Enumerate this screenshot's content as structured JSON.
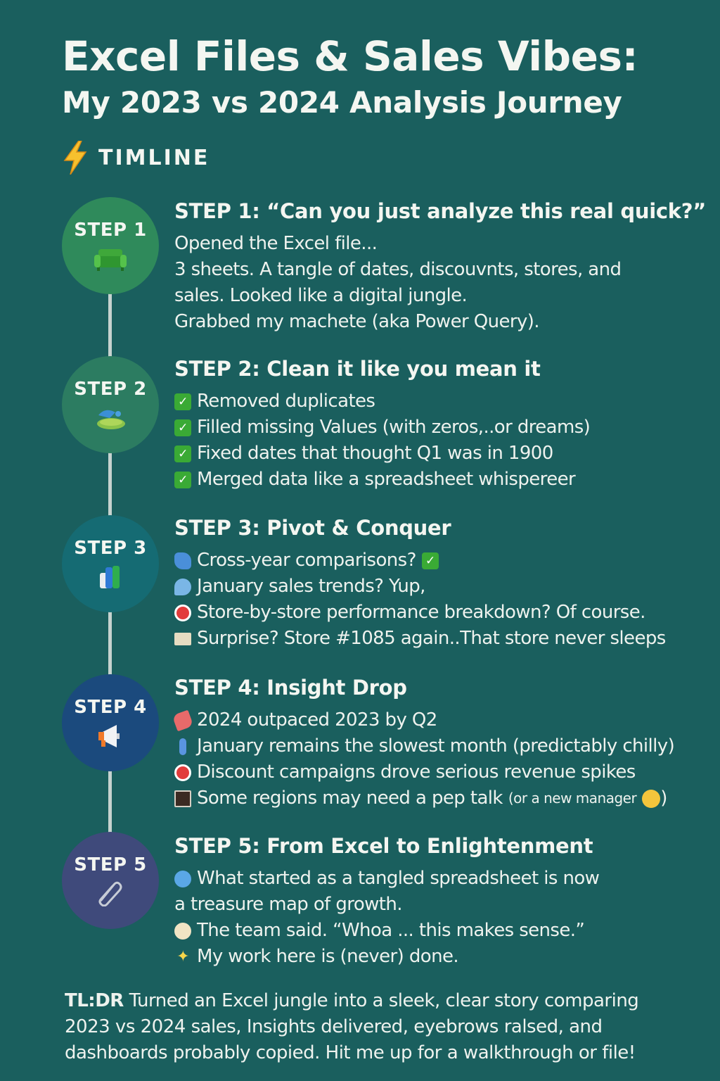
{
  "header": {
    "title": "Excel Files & Sales Vibes:",
    "subtitle": "My 2023 vs 2024 Analysis Journey",
    "timeline_label": "TIMLINE"
  },
  "colors": {
    "background": "#1a5f5e",
    "step1": "#2e8a5a",
    "step2": "#2f7d62",
    "step3": "#176c72",
    "step4": "#1c4a7c",
    "step5": "#3f4a7a"
  },
  "steps": [
    {
      "badge": "STEP 1",
      "icon": "sofa-icon",
      "heading": "STEP 1: “Can you just analyze this real quick?”",
      "lines": [
        "Opened the Excel file...",
        "3 sheets. A tangle of dates, discouvnts, stores, and",
        "sales. Looked like a digital jungle.",
        "Grabbed my machete (aka Power Query)."
      ]
    },
    {
      "badge": "STEP 2",
      "icon": "cleaning-icon",
      "heading": "STEP 2: Clean it like you mean it",
      "items": [
        "Removed duplicates",
        "Filled missing Values (with zeros,..or dreams)",
        "Fixed dates that thought Q1 was in 1900",
        "Merged data like a spreadsheet whispereer"
      ]
    },
    {
      "badge": "STEP 3",
      "icon": "pivot-chart-icon",
      "heading": "STEP 3: Pivot & Conquer",
      "items": [
        "Cross-year comparisons?",
        "January sales trends? Yup,",
        "Store-by-store performance breakdown? Of course.",
        "Surprise? Store #1085 again..That store never sleeps"
      ]
    },
    {
      "badge": "STEP 4",
      "icon": "megaphone-icon",
      "heading": "STEP 4: Insight Drop",
      "items": [
        "2024 outpaced 2023 by Q2",
        "January remains the slowest month (predictably chilly)",
        "Discount campaigns drove serious revenue spikes",
        "Some regions may need a pep talk",
        "(or a new manager",
        ")"
      ]
    },
    {
      "badge": "STEP 5",
      "icon": "paperclip-icon",
      "heading": "STEP 5: From Excel to Enlightenment",
      "items": [
        "What started as a tangled spreadsheet is now",
        "a treasure map of growth.",
        "The team said. “Whoa ...  this makes sense.”",
        "My work here is (never) done."
      ]
    }
  ],
  "tldr": {
    "label": "TL:DR",
    "line1": "Turned an Excel jungle into a sleek, clear story comparing",
    "line2": "2023 vs 2024 sales, Insights delivered, eyebrows ralsed, and",
    "line3": "dashboards probably copied. Hit me up for a walkthrough or file!"
  }
}
